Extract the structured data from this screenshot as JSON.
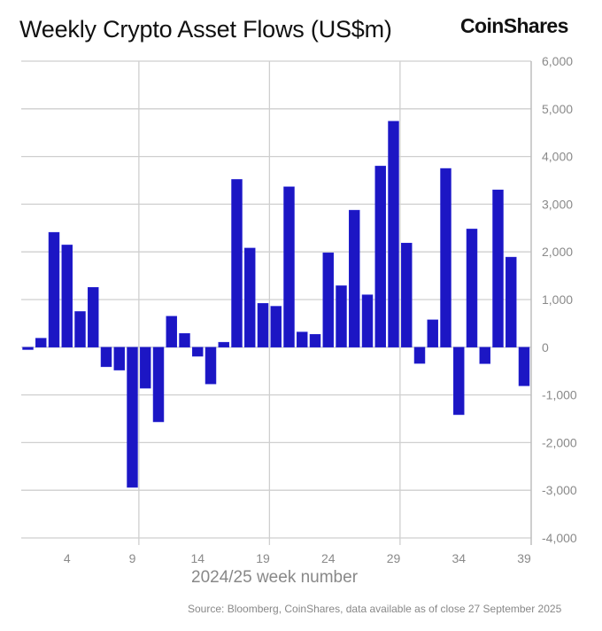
{
  "chart_data": {
    "type": "bar",
    "title": "Weekly Crypto Asset Flows (US$m)",
    "xlabel": "2024/25 week number",
    "ylabel": "",
    "ylim": [
      -4000,
      6000
    ],
    "yticks": [
      6000,
      5000,
      4000,
      3000,
      2000,
      1000,
      0,
      -1000,
      -2000,
      -3000,
      -4000
    ],
    "ytick_labels": [
      "6,000",
      "5,000",
      "4,000",
      "3,000",
      "2,000",
      "1,000",
      "0",
      "-1,000",
      "-2,000",
      "-3,000",
      "-4,000"
    ],
    "xticks": [
      4,
      9,
      14,
      19,
      24,
      29,
      34,
      39
    ],
    "xtick_labels": [
      "4",
      "9",
      "14",
      "19",
      "24",
      "29",
      "34",
      "39"
    ],
    "y_axis_side": "right",
    "grid": true,
    "bar_color": "#1c16c4",
    "categories": [
      1,
      2,
      3,
      4,
      5,
      6,
      7,
      8,
      9,
      10,
      11,
      12,
      13,
      14,
      15,
      16,
      17,
      18,
      19,
      20,
      21,
      22,
      23,
      24,
      25,
      26,
      27,
      28,
      29,
      30,
      31,
      32,
      33,
      34,
      35,
      36,
      37,
      38,
      39
    ],
    "values": [
      -50,
      190,
      2410,
      2145,
      750,
      1255,
      -410,
      -480,
      -2940,
      -860,
      -1565,
      650,
      290,
      -190,
      -770,
      105,
      3520,
      2080,
      920,
      860,
      3365,
      320,
      270,
      1980,
      1290,
      2875,
      1100,
      3800,
      4740,
      2185,
      -340,
      575,
      3750,
      -1415,
      2480,
      -345,
      3300,
      1890,
      -810
    ]
  },
  "header": {
    "logo_text": "CoinShares"
  },
  "footer": {
    "source": "Source: Bloomberg, CoinShares, data available as of close 27 September 2025"
  }
}
